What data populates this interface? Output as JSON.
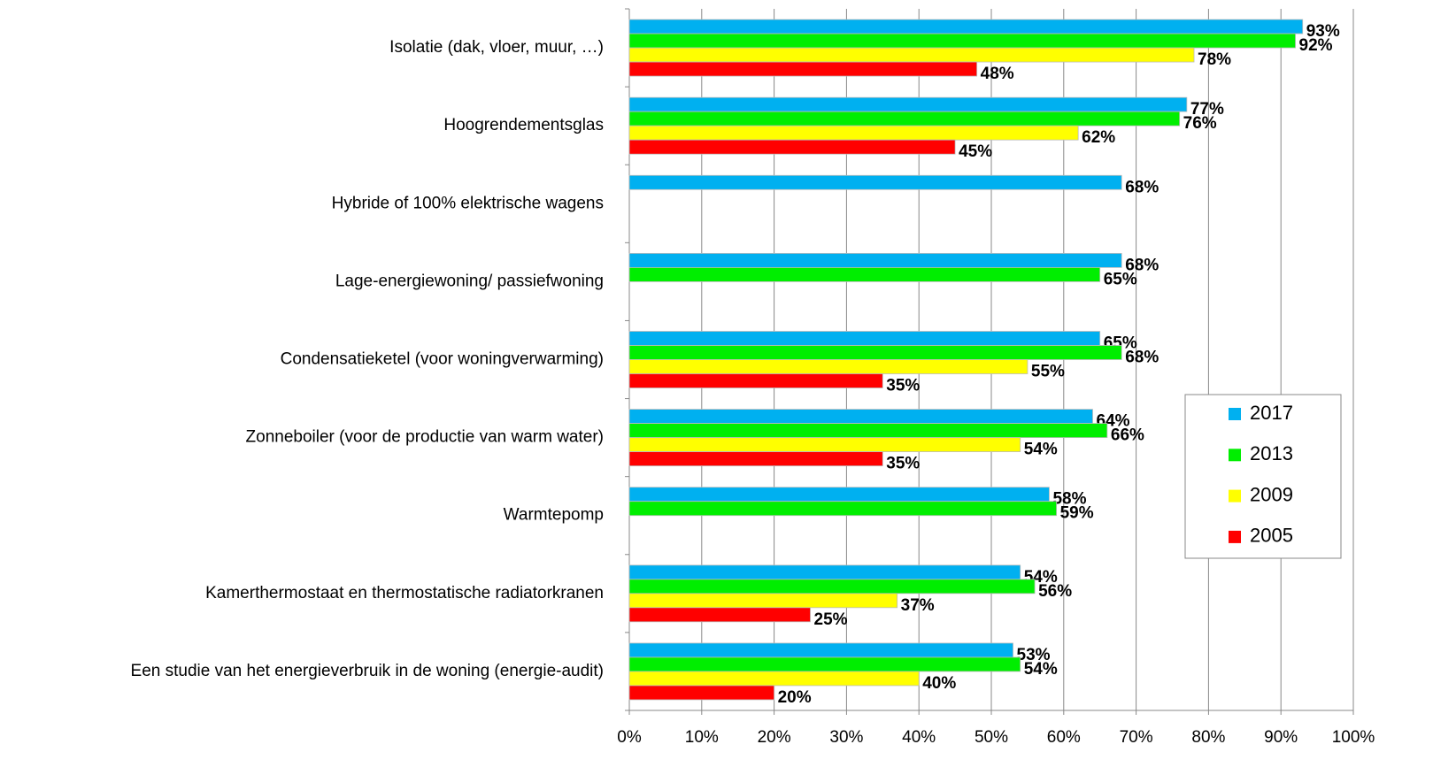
{
  "chart_data": {
    "type": "bar",
    "orientation": "horizontal",
    "categories": [
      "Isolatie (dak, vloer, muur, …)",
      "Hoogrendementsglas",
      "Hybride of 100% elektrische wagens",
      "Lage-energiewoning/ passiefwoning",
      "Condensatieketel (voor woningverwarming)",
      "Zonneboiler (voor de productie van warm water)",
      "Warmtepomp",
      "Kamerthermostaat en thermostatische radiatorkranen",
      "Een studie van het energieverbruik in de woning (energie-audit)"
    ],
    "series": [
      {
        "name": "2017",
        "color": "#00b0f0",
        "label_color": "#1f6fe6",
        "values": [
          93,
          77,
          68,
          68,
          65,
          64,
          58,
          54,
          53
        ],
        "value_labels": [
          "93%",
          "77%",
          "68%",
          "68%",
          "65%",
          "64%",
          "58%",
          "54%",
          "53%"
        ]
      },
      {
        "name": "2013",
        "color": "#00ee00",
        "label_color": "#000000",
        "values": [
          92,
          76,
          null,
          65,
          68,
          66,
          59,
          56,
          54
        ],
        "value_labels": [
          "92%",
          "76%",
          null,
          "65%",
          "68%",
          "66%",
          "59%",
          "56%",
          "54%"
        ]
      },
      {
        "name": "2009",
        "color": "#ffff00",
        "label_color": "#000000",
        "values": [
          78,
          62,
          null,
          null,
          55,
          54,
          null,
          37,
          40
        ],
        "value_labels": [
          "78%",
          "62%",
          null,
          null,
          "55%",
          "54%",
          null,
          "37%",
          "40%"
        ]
      },
      {
        "name": "2005",
        "color": "#ff0000",
        "label_color": "#ff0000",
        "values": [
          48,
          45,
          null,
          null,
          35,
          35,
          null,
          25,
          20
        ],
        "value_labels": [
          "48%",
          "45%",
          null,
          null,
          "35%",
          "35%",
          null,
          "25%",
          "20%"
        ]
      }
    ],
    "xlim": [
      0,
      100
    ],
    "xticks": [
      {
        "value": 0,
        "label": "0%"
      },
      {
        "value": 10,
        "label": "10%"
      },
      {
        "value": 20,
        "label": "20%"
      },
      {
        "value": 30,
        "label": "30%"
      },
      {
        "value": 40,
        "label": "40%"
      },
      {
        "value": 50,
        "label": "50%"
      },
      {
        "value": 60,
        "label": "60%"
      },
      {
        "value": 70,
        "label": "70%"
      },
      {
        "value": 80,
        "label": "80%"
      },
      {
        "value": 90,
        "label": "90%"
      },
      {
        "value": 100,
        "label": "100%"
      }
    ],
    "grid": true,
    "legend": "right"
  }
}
